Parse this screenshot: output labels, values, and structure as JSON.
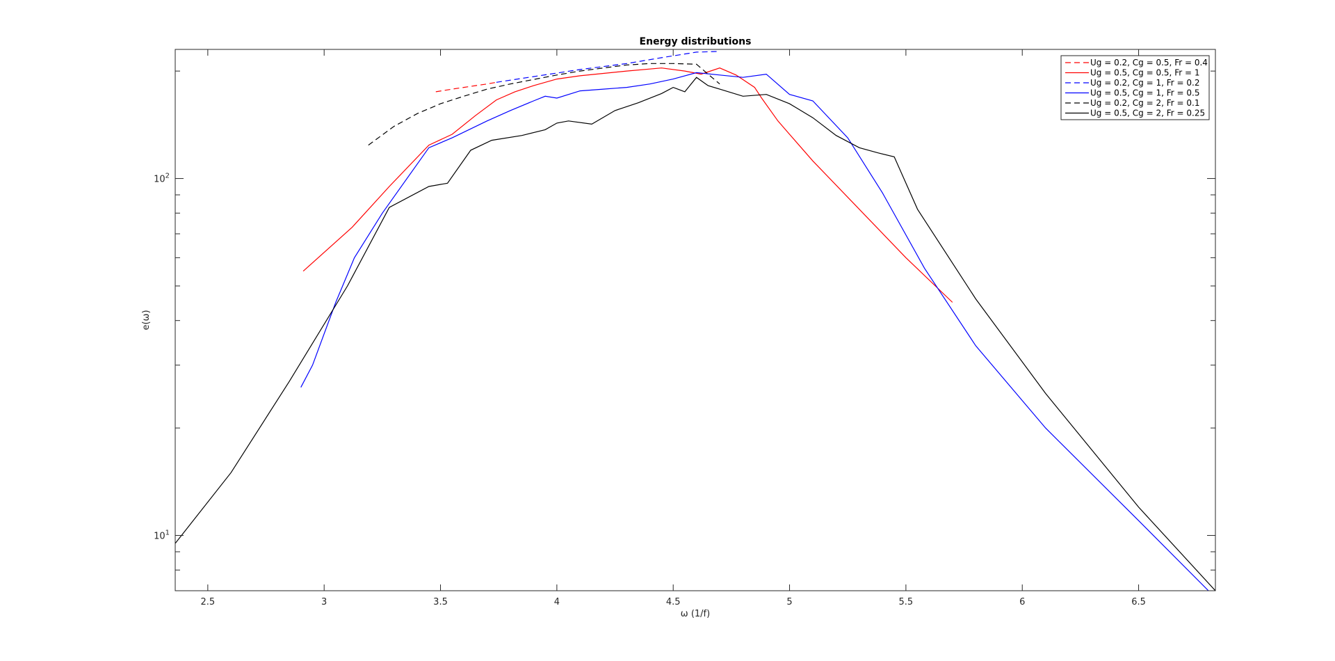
{
  "chart_data": {
    "type": "line",
    "title": "Energy distributions",
    "xlabel": "ω (1/f)",
    "ylabel": "e(ω)",
    "xlim": [
      2.36,
      6.83
    ],
    "ylim": [
      7,
      230
    ],
    "yscale": "log",
    "x_ticks": [
      2.5,
      3,
      3.5,
      4,
      4.5,
      5,
      5.5,
      6,
      6.5
    ],
    "x_tick_labels": [
      "2.5",
      "3",
      "3.5",
      "4",
      "4.5",
      "5",
      "5.5",
      "6",
      "6.5"
    ],
    "y_major_ticks": [
      10,
      100
    ],
    "y_tick_labels": [
      {
        "base": "10",
        "exp": "1",
        "value": 10
      },
      {
        "base": "10",
        "exp": "2",
        "value": 100
      }
    ],
    "legend_position": "top-right",
    "grid": false,
    "series": [
      {
        "name": "Ug = 0.2, Cg = 0.5, Fr = 0.4",
        "color": "#ff0000",
        "dash": "dashed",
        "points": [
          [
            3.48,
            175
          ],
          [
            3.55,
            178
          ],
          [
            3.6,
            180
          ],
          [
            3.65,
            182
          ],
          [
            3.7,
            184
          ],
          [
            3.74,
            186
          ]
        ]
      },
      {
        "name": "Ug = 0.5, Cg = 0.5, Fr = 1",
        "color": "#ff0000",
        "dash": "solid",
        "points": [
          [
            2.91,
            55
          ],
          [
            3.12,
            73
          ],
          [
            3.28,
            95
          ],
          [
            3.45,
            124
          ],
          [
            3.55,
            133
          ],
          [
            3.65,
            150
          ],
          [
            3.74,
            166
          ],
          [
            3.82,
            175
          ],
          [
            3.9,
            182
          ],
          [
            4.0,
            190
          ],
          [
            4.1,
            194
          ],
          [
            4.2,
            197
          ],
          [
            4.3,
            200
          ],
          [
            4.45,
            204
          ],
          [
            4.55,
            200
          ],
          [
            4.62,
            196
          ],
          [
            4.7,
            204
          ],
          [
            4.77,
            195
          ],
          [
            4.85,
            180
          ],
          [
            4.88,
            168
          ],
          [
            4.95,
            145
          ],
          [
            5.0,
            133
          ],
          [
            5.1,
            112
          ],
          [
            5.3,
            82
          ],
          [
            5.5,
            60
          ],
          [
            5.7,
            45
          ]
        ]
      },
      {
        "name": "Ug = 0.2, Cg = 1, Fr = 0.2",
        "color": "#0000ff",
        "dash": "dashed",
        "points": [
          [
            3.74,
            186
          ],
          [
            3.9,
            193
          ],
          [
            4.1,
            202
          ],
          [
            4.3,
            210
          ],
          [
            4.45,
            218
          ],
          [
            4.6,
            226
          ],
          [
            4.7,
            227
          ]
        ]
      },
      {
        "name": "Ug = 0.5, Cg = 1, Fr = 0.5",
        "color": "#0000ff",
        "dash": "solid",
        "points": [
          [
            2.9,
            26
          ],
          [
            2.95,
            30
          ],
          [
            3.05,
            45
          ],
          [
            3.13,
            60
          ],
          [
            3.25,
            80
          ],
          [
            3.45,
            122
          ],
          [
            3.55,
            130
          ],
          [
            3.7,
            145
          ],
          [
            3.8,
            155
          ],
          [
            3.9,
            165
          ],
          [
            3.95,
            170
          ],
          [
            4.0,
            168
          ],
          [
            4.1,
            176
          ],
          [
            4.2,
            178
          ],
          [
            4.3,
            180
          ],
          [
            4.4,
            184
          ],
          [
            4.5,
            190
          ],
          [
            4.6,
            198
          ],
          [
            4.7,
            195
          ],
          [
            4.8,
            192
          ],
          [
            4.9,
            196
          ],
          [
            5.0,
            172
          ],
          [
            5.1,
            165
          ],
          [
            5.25,
            130
          ],
          [
            5.4,
            91
          ],
          [
            5.58,
            56
          ],
          [
            5.8,
            34
          ],
          [
            6.1,
            20
          ],
          [
            6.5,
            11
          ],
          [
            6.8,
            7
          ]
        ]
      },
      {
        "name": "Ug = 0.2, Cg = 2, Fr = 0.1",
        "color": "#000000",
        "dash": "dashed",
        "points": [
          [
            3.19,
            124
          ],
          [
            3.3,
            140
          ],
          [
            3.4,
            152
          ],
          [
            3.5,
            162
          ],
          [
            3.6,
            170
          ],
          [
            3.7,
            178
          ],
          [
            3.8,
            184
          ],
          [
            4.0,
            195
          ],
          [
            4.1,
            200
          ],
          [
            4.2,
            204
          ],
          [
            4.3,
            208
          ],
          [
            4.4,
            210
          ],
          [
            4.5,
            210
          ],
          [
            4.6,
            209
          ],
          [
            4.65,
            196
          ],
          [
            4.7,
            184
          ]
        ]
      },
      {
        "name": "Ug = 0.5, Cg = 2, Fr = 0.25",
        "color": "#000000",
        "dash": "solid",
        "points": [
          [
            2.36,
            9.5
          ],
          [
            2.6,
            15
          ],
          [
            2.85,
            27
          ],
          [
            3.1,
            50
          ],
          [
            3.28,
            83
          ],
          [
            3.45,
            95
          ],
          [
            3.53,
            97
          ],
          [
            3.63,
            120
          ],
          [
            3.72,
            128
          ],
          [
            3.85,
            132
          ],
          [
            3.95,
            137
          ],
          [
            4.0,
            143
          ],
          [
            4.05,
            145
          ],
          [
            4.15,
            142
          ],
          [
            4.25,
            155
          ],
          [
            4.35,
            163
          ],
          [
            4.45,
            173
          ],
          [
            4.5,
            180
          ],
          [
            4.55,
            175
          ],
          [
            4.6,
            192
          ],
          [
            4.65,
            182
          ],
          [
            4.7,
            178
          ],
          [
            4.8,
            170
          ],
          [
            4.9,
            172
          ],
          [
            5.0,
            162
          ],
          [
            5.1,
            148
          ],
          [
            5.2,
            132
          ],
          [
            5.3,
            122
          ],
          [
            5.38,
            118
          ],
          [
            5.45,
            115
          ],
          [
            5.55,
            82
          ],
          [
            5.8,
            46
          ],
          [
            6.1,
            25
          ],
          [
            6.5,
            12
          ],
          [
            6.83,
            7
          ]
        ]
      }
    ]
  }
}
